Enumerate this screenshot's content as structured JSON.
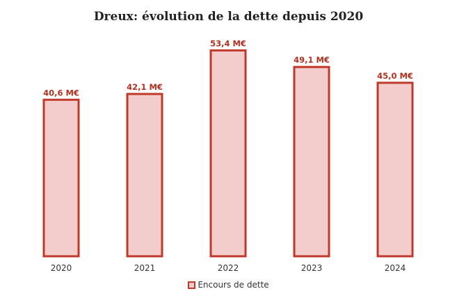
{
  "colors": {
    "bar_fill": "#f3cccc",
    "bar_stroke": "#c0392b",
    "label": "#b3321f"
  },
  "chart_data": {
    "type": "bar",
    "title": "Dreux: évolution de la dette depuis 2020",
    "categories": [
      "2020",
      "2021",
      "2022",
      "2023",
      "2024"
    ],
    "series": [
      {
        "name": "Encours de dette",
        "values": [
          40.6,
          42.1,
          53.4,
          49.1,
          45.0
        ]
      }
    ],
    "data_labels": [
      "40,6 M€",
      "42,1 M€",
      "53,4 M€",
      "49,1 M€",
      "45,0 M€"
    ],
    "xlabel": "",
    "ylabel": "",
    "ylim": [
      0,
      56
    ],
    "grid": false,
    "legend_position": "bottom"
  }
}
